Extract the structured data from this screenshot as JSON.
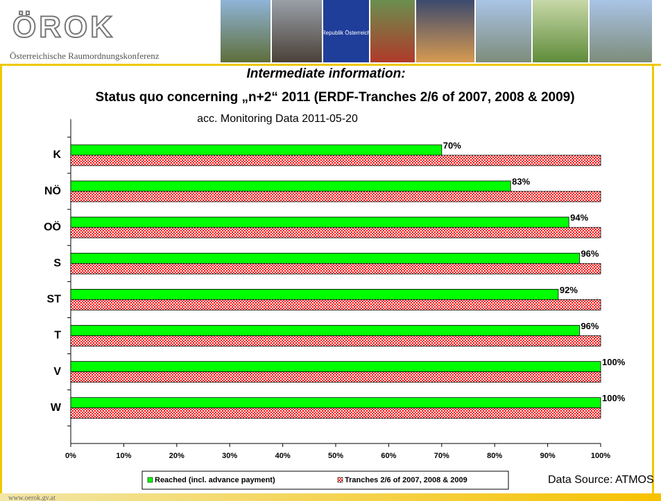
{
  "header": {
    "logo": "ÖROK",
    "tagline": "Österreichische Raumordnungskonferenz",
    "flag_text": "Republik Österreich"
  },
  "footer": {
    "url": "www.oerok.gv.at"
  },
  "chart_data": {
    "type": "hbar",
    "title": "Intermediate information:",
    "subtitle": "Status quo concerning „n+2“ 2011 (ERDF-Tranches 2/6 of 2007, 2008 & 2009)",
    "note": "acc. Monitoring Data 2011-05-20",
    "source": "Data Source: ATMOS",
    "categories": [
      "K",
      "NÖ",
      "OÖ",
      "S",
      "ST",
      "T",
      "V",
      "W"
    ],
    "series": [
      {
        "name": "Reached (incl. advance payment)",
        "color": "#00ff00",
        "values": [
          70,
          83,
          94,
          96,
          92,
          96,
          100,
          100
        ],
        "value_labels": [
          "70%",
          "83%",
          "94%",
          "96%",
          "92%",
          "96%",
          "100%",
          "100%"
        ]
      },
      {
        "name": "Tranches 2/6 of 2007, 2008 & 2009",
        "color": "#ff0000",
        "pattern": "checker",
        "values": [
          100,
          100,
          100,
          100,
          100,
          100,
          100,
          100
        ]
      }
    ],
    "xlim": [
      0,
      100
    ],
    "xticks": [
      {
        "value": 0,
        "label": "0%"
      },
      {
        "value": 10,
        "label": "10%"
      },
      {
        "value": 20,
        "label": "20%"
      },
      {
        "value": 30,
        "label": "30%"
      },
      {
        "value": 40,
        "label": "40%"
      },
      {
        "value": 50,
        "label": "50%"
      },
      {
        "value": 60,
        "label": "60%"
      },
      {
        "value": 70,
        "label": "70%"
      },
      {
        "value": 80,
        "label": "80%"
      },
      {
        "value": 90,
        "label": "90%"
      },
      {
        "value": 100,
        "label": "100%"
      }
    ],
    "legend": "bottom"
  }
}
